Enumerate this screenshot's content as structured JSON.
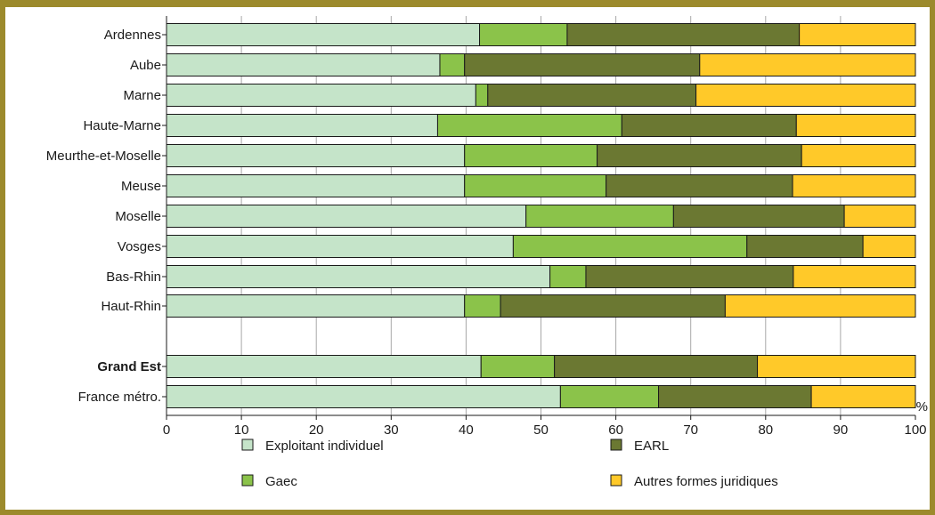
{
  "chart_data": {
    "type": "bar",
    "orientation": "horizontal",
    "stacked": true,
    "title": "",
    "xlabel": "",
    "ylabel": "",
    "unit": "%",
    "xlim": [
      0,
      100
    ],
    "xticks": [
      0,
      10,
      20,
      30,
      40,
      50,
      60,
      70,
      80,
      90,
      100
    ],
    "grid": true,
    "legend_position": "bottom",
    "categories": [
      "Ardennes",
      "Aube",
      "Marne",
      "Haute-Marne",
      "Meurthe-et-Moselle",
      "Meuse",
      "Moselle",
      "Vosges",
      "Bas-Rhin",
      "Haut-Rhin",
      "Grand Est",
      "France métro."
    ],
    "bold_categories": [
      "Grand Est"
    ],
    "series": [
      {
        "name": "Exploitant individuel",
        "color": "#c5e4c9",
        "values": [
          41.8,
          36.5,
          41.3,
          36.2,
          39.8,
          39.8,
          48.0,
          46.3,
          51.2,
          39.8,
          42.0,
          52.6
        ]
      },
      {
        "name": "Gaec",
        "color": "#8bc34a",
        "values": [
          11.7,
          3.3,
          1.6,
          24.6,
          17.7,
          18.9,
          19.7,
          31.2,
          4.8,
          4.8,
          9.8,
          13.1
        ]
      },
      {
        "name": "EARL",
        "color": "#6b7832",
        "values": [
          31.0,
          31.4,
          27.8,
          23.3,
          27.3,
          24.9,
          22.8,
          15.5,
          27.7,
          30.0,
          27.1,
          20.4
        ]
      },
      {
        "name": "Autres formes juridiques",
        "color": "#ffc929",
        "values": [
          15.5,
          28.8,
          29.3,
          15.9,
          15.2,
          16.4,
          9.5,
          7.0,
          16.3,
          25.4,
          21.1,
          13.9
        ]
      }
    ]
  }
}
